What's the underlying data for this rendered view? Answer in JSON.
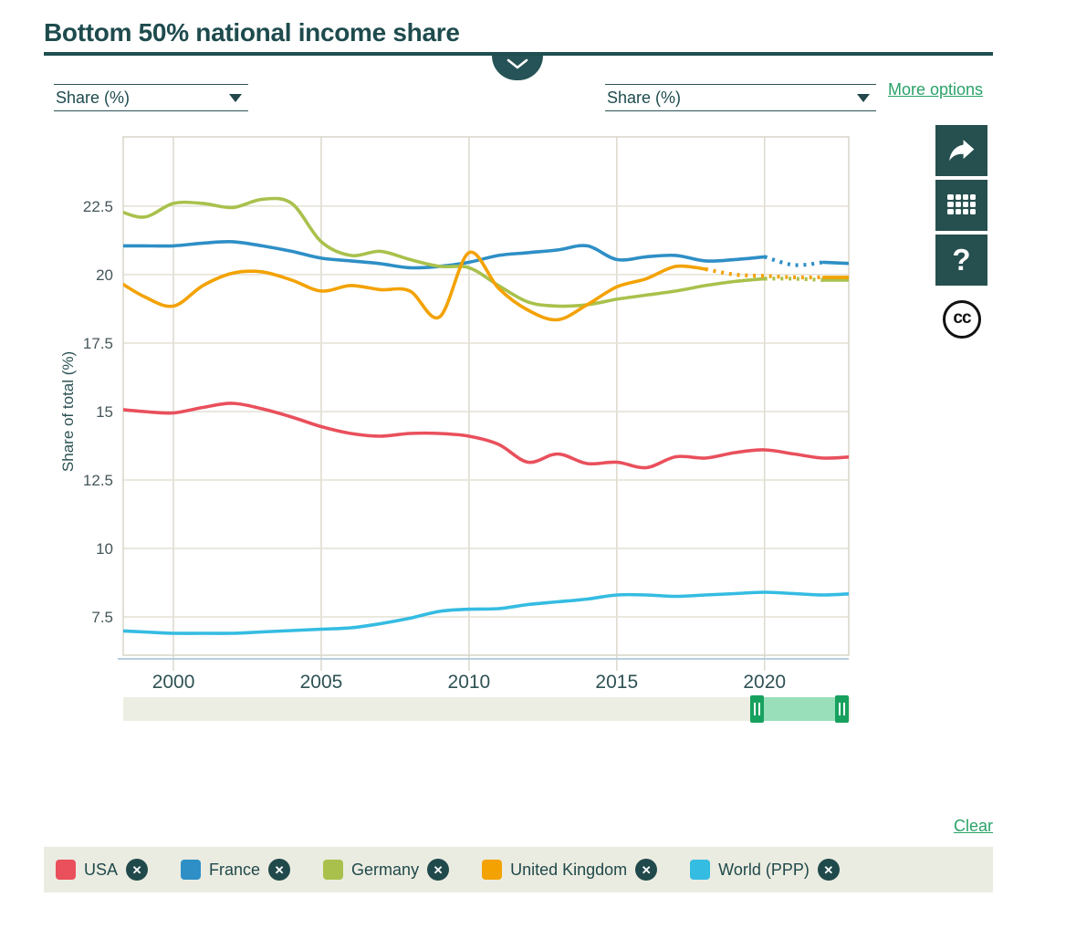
{
  "header": {
    "title": "Bottom 50% national income share"
  },
  "controls": {
    "left_unit_select": {
      "value": "Share (%)"
    },
    "right_unit_select": {
      "value": "Share (%)"
    },
    "more_options_label": "More options",
    "clear_label": "Clear"
  },
  "toolbar": {
    "icons": [
      "share-icon",
      "table-icon",
      "help-icon",
      "cc-icon"
    ],
    "help_glyph": "?",
    "cc_glyph": "cc"
  },
  "chart_data": {
    "type": "line",
    "title": "Bottom 50% national income share",
    "xlabel": "",
    "ylabel": "Share of total (%)",
    "x": [
      1998,
      1999,
      2000,
      2001,
      2002,
      2003,
      2004,
      2005,
      2006,
      2007,
      2008,
      2009,
      2010,
      2011,
      2012,
      2013,
      2014,
      2015,
      2016,
      2017,
      2018,
      2019,
      2020,
      2021,
      2022,
      2023
    ],
    "xticks": [
      2000,
      2005,
      2010,
      2015,
      2020
    ],
    "yticks": [
      7.5,
      10,
      12.5,
      15,
      17.5,
      20,
      22.5
    ],
    "xlim": [
      1998.3,
      2022.85
    ],
    "ylim": [
      6.1,
      25.03
    ],
    "grid": true,
    "legend_position": "bottom",
    "series": [
      {
        "name": "USA",
        "color": "#e9505c",
        "values": [
          15.1,
          15.0,
          14.95,
          15.15,
          15.3,
          15.1,
          14.8,
          14.45,
          14.2,
          14.1,
          14.2,
          14.2,
          14.1,
          13.8,
          13.15,
          13.45,
          13.1,
          13.15,
          12.95,
          13.35,
          13.3,
          13.5,
          13.6,
          13.45,
          13.3,
          13.35
        ],
        "dash_ranges": []
      },
      {
        "name": "France",
        "color": "#2e8fc6",
        "values": [
          21.05,
          21.05,
          21.05,
          21.15,
          21.2,
          21.05,
          20.85,
          20.6,
          20.5,
          20.4,
          20.25,
          20.3,
          20.45,
          20.7,
          20.8,
          20.9,
          21.05,
          20.55,
          20.65,
          20.7,
          20.5,
          20.55,
          20.65,
          20.35,
          20.45,
          20.4
        ],
        "dash_ranges": [
          [
            2020,
            2022
          ]
        ]
      },
      {
        "name": "Germany",
        "color": "#a9c14c",
        "values": [
          22.4,
          22.1,
          22.6,
          22.6,
          22.45,
          22.75,
          22.6,
          21.2,
          20.7,
          20.85,
          20.55,
          20.3,
          20.25,
          19.6,
          19.0,
          18.85,
          18.9,
          19.1,
          19.25,
          19.4,
          19.6,
          19.75,
          19.85,
          19.85,
          19.8,
          19.8
        ],
        "dash_ranges": [
          [
            2020,
            2022
          ]
        ]
      },
      {
        "name": "United Kingdom",
        "color": "#f3a202",
        "values": [
          19.85,
          19.2,
          18.85,
          19.6,
          20.05,
          20.1,
          19.8,
          19.4,
          19.6,
          19.45,
          19.4,
          18.45,
          20.8,
          19.5,
          18.7,
          18.35,
          18.9,
          19.55,
          19.85,
          20.3,
          20.2,
          20.0,
          19.95,
          19.9,
          19.9,
          19.9
        ],
        "dash_ranges": [
          [
            2018,
            2022
          ]
        ]
      },
      {
        "name": "World (PPP)",
        "color": "#35bce2",
        "values": [
          7.0,
          6.95,
          6.9,
          6.9,
          6.9,
          6.95,
          7.0,
          7.05,
          7.1,
          7.25,
          7.45,
          7.7,
          7.78,
          7.8,
          7.95,
          8.05,
          8.15,
          8.3,
          8.3,
          8.25,
          8.3,
          8.35,
          8.4,
          8.35,
          8.3,
          8.35
        ],
        "dash_ranges": []
      }
    ]
  },
  "slider": {
    "selection_years": [
      2019.5,
      2022.85
    ]
  },
  "legend": {
    "items": [
      {
        "label": "USA",
        "color": "#e9505c"
      },
      {
        "label": "France",
        "color": "#2e8fc6"
      },
      {
        "label": "Germany",
        "color": "#a9c14c"
      },
      {
        "label": "United Kingdom",
        "color": "#f3a202"
      },
      {
        "label": "World (PPP)",
        "color": "#35bce2"
      }
    ]
  }
}
